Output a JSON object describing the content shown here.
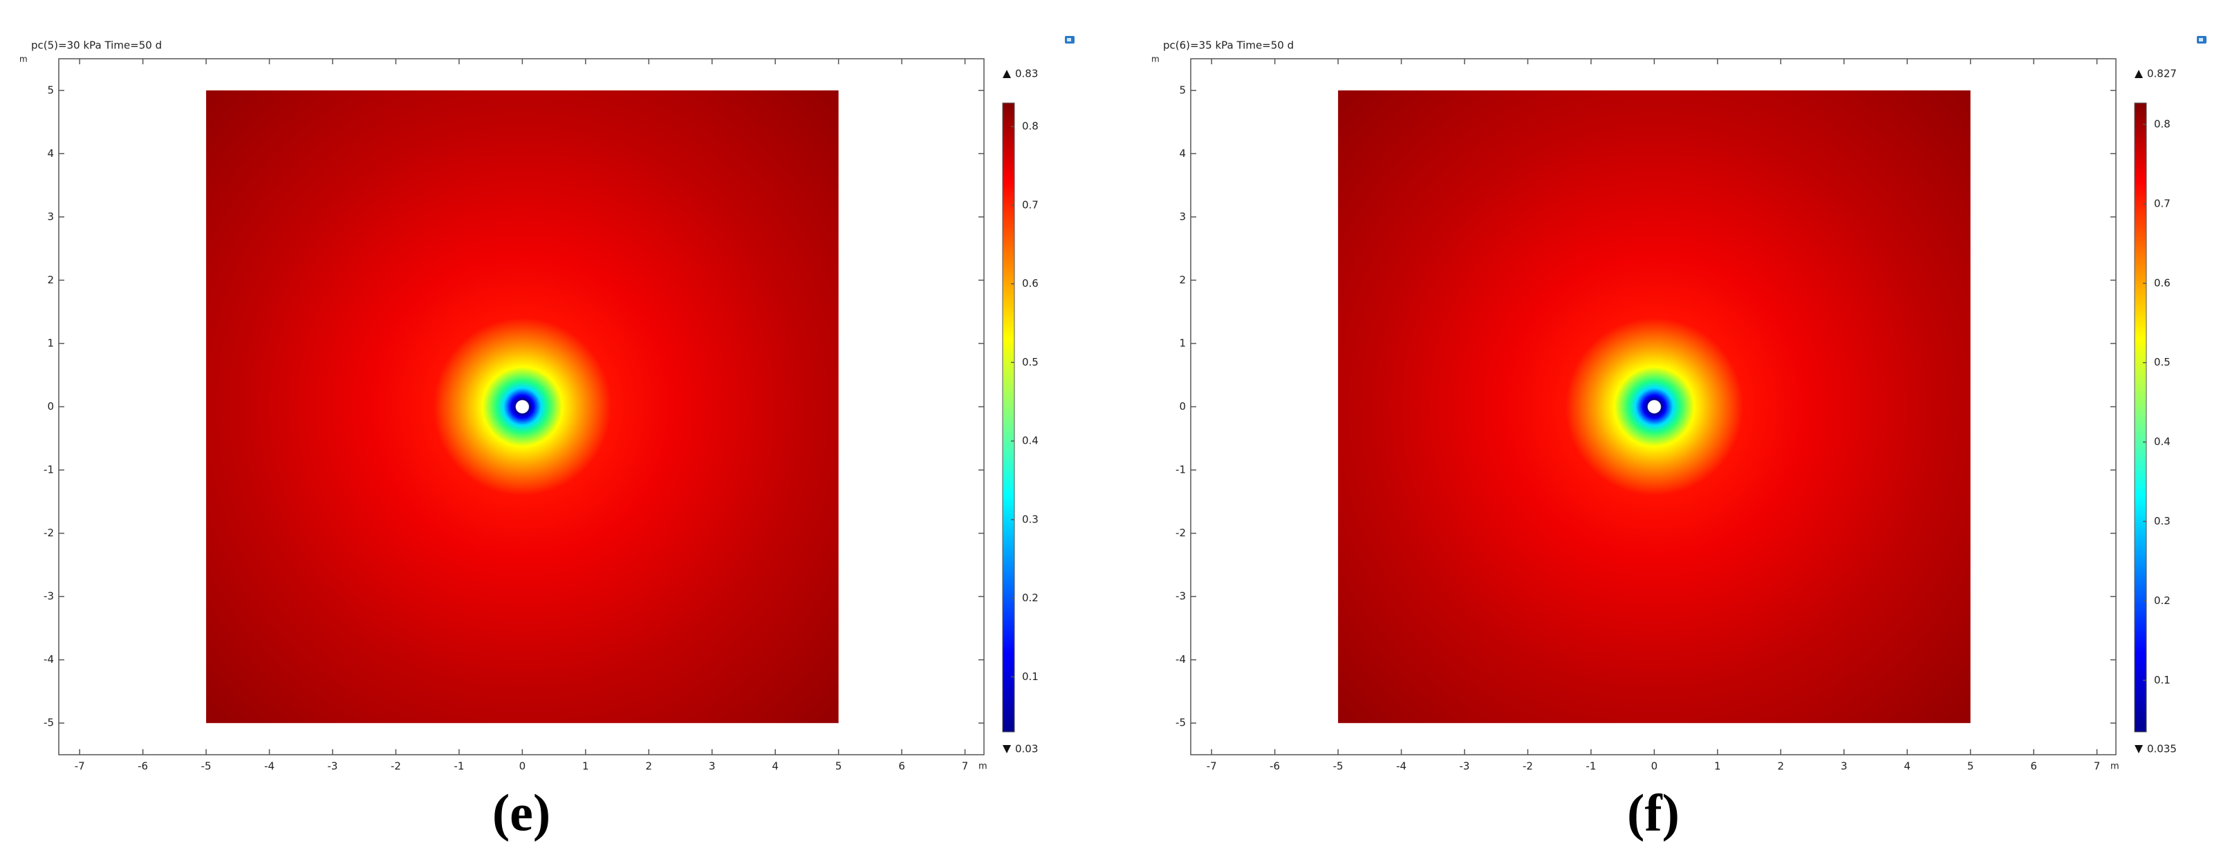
{
  "chart_data": [
    {
      "type": "heatmap",
      "title": "pc(5)=30 kPa Time=50 d",
      "x_unit": "m",
      "y_unit": "m",
      "xlim": [
        -7.33,
        7.3
      ],
      "ylim": [
        -5.5,
        5.5
      ],
      "xticks": [
        -7,
        -6,
        -5,
        -4,
        -3,
        -2,
        -1,
        0,
        1,
        2,
        3,
        4,
        5,
        6,
        7
      ],
      "yticks": [
        -5,
        -4,
        -3,
        -2,
        -1,
        0,
        1,
        2,
        3,
        4,
        5
      ],
      "domain": {
        "x": [
          -5,
          5
        ],
        "y": [
          -5,
          5
        ]
      },
      "colorbar": {
        "min": 0.03,
        "max": 0.83,
        "ticks": [
          0.1,
          0.2,
          0.3,
          0.4,
          0.5,
          0.6,
          0.7,
          0.8
        ]
      },
      "caption": "(e)"
    },
    {
      "type": "heatmap",
      "title": "pc(6)=35 kPa Time=50 d",
      "x_unit": "m",
      "y_unit": "m",
      "xlim": [
        -7.33,
        7.3
      ],
      "ylim": [
        -5.5,
        5.5
      ],
      "xticks": [
        -7,
        -6,
        -5,
        -4,
        -3,
        -2,
        -1,
        0,
        1,
        2,
        3,
        4,
        5,
        6,
        7
      ],
      "yticks": [
        -5,
        -4,
        -3,
        -2,
        -1,
        0,
        1,
        2,
        3,
        4,
        5
      ],
      "domain": {
        "x": [
          -5,
          5
        ],
        "y": [
          -5,
          5
        ]
      },
      "colorbar": {
        "min": 0.035,
        "max": 0.827,
        "ticks": [
          0.1,
          0.2,
          0.3,
          0.4,
          0.5,
          0.6,
          0.7,
          0.8
        ]
      },
      "caption": "(f)"
    }
  ]
}
